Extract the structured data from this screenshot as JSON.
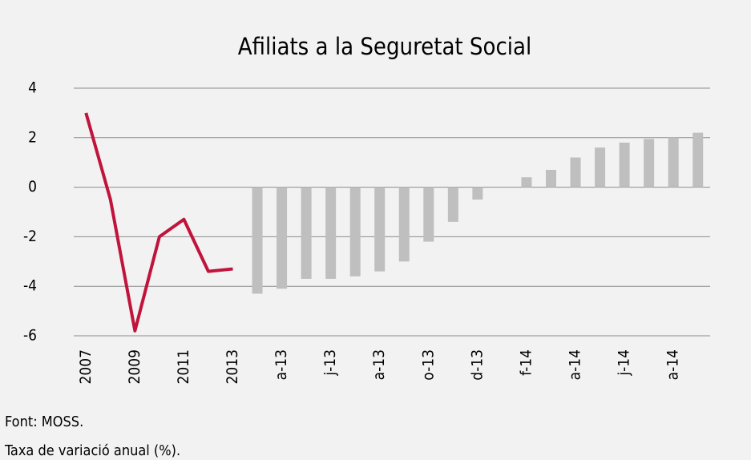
{
  "chart_data": {
    "type": "bar-line",
    "title": "Afiliats a la Seguretat Social",
    "notes": [
      "Font: MOSS.",
      "Taxa de variació anual (%)."
    ],
    "categories": [
      "2007",
      null,
      "2009",
      null,
      "2011",
      null,
      "2013",
      null,
      "a-13",
      null,
      "j-13",
      null,
      "a-13",
      null,
      "o-13",
      null,
      "d-13",
      null,
      "f-14",
      null,
      "a-14",
      null,
      "j-14",
      null,
      "a-14",
      null
    ],
    "series": [
      {
        "type": "line",
        "color": "#c0143c",
        "values": [
          3.0,
          -0.5,
          -5.8,
          -2.0,
          -1.3,
          -3.4,
          -3.3,
          null,
          null,
          null,
          null,
          null,
          null,
          null,
          null,
          null,
          null,
          null,
          null,
          null,
          null,
          null,
          null,
          null,
          null,
          null
        ]
      },
      {
        "type": "bar",
        "color": "#bfbfbf",
        "values": [
          null,
          null,
          null,
          null,
          null,
          null,
          null,
          -4.3,
          -4.1,
          -3.7,
          -3.7,
          -3.6,
          -3.4,
          -3.0,
          -2.2,
          -1.4,
          -0.5,
          0,
          0.4,
          0.7,
          1.2,
          1.6,
          1.8,
          1.95,
          2.0,
          2.2
        ]
      }
    ],
    "ylim": [
      -6,
      4
    ],
    "yticks": [
      -6,
      -4,
      -2,
      0,
      2,
      4
    ],
    "grid": true
  }
}
